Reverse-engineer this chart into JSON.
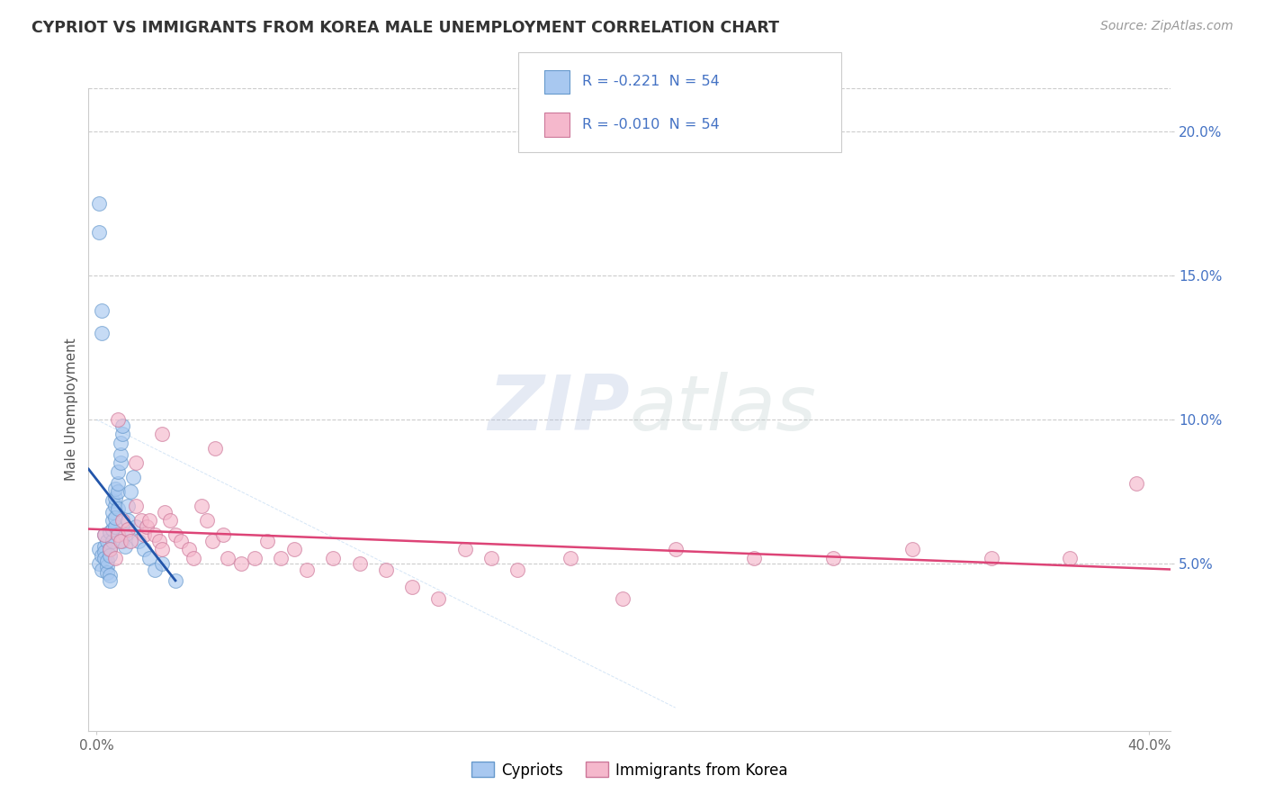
{
  "title": "CYPRIOT VS IMMIGRANTS FROM KOREA MALE UNEMPLOYMENT CORRELATION CHART",
  "source": "Source: ZipAtlas.com",
  "ylabel": "Male Unemployment",
  "color_blue_fill": "#A8C8F0",
  "color_blue_edge": "#6699CC",
  "color_blue_line": "#2255AA",
  "color_pink_fill": "#F5B8CC",
  "color_pink_edge": "#CC7799",
  "color_pink_line": "#DD4477",
  "r_cypriot": -0.221,
  "n_cypriot": 54,
  "r_korea": -0.01,
  "n_korea": 54,
  "legend_label1": "Cypriots",
  "legend_label2": "Immigrants from Korea",
  "xlim": [
    -0.003,
    0.408
  ],
  "ylim": [
    -0.008,
    0.215
  ],
  "background": "#FFFFFF",
  "grid_color": "#CCCCCC",
  "yticks": [
    0.05,
    0.1,
    0.15,
    0.2
  ],
  "ytick_labels": [
    "5.0%",
    "10.0%",
    "15.0%",
    "20.0%"
  ],
  "cypriot_x": [
    0.001,
    0.001,
    0.002,
    0.002,
    0.003,
    0.003,
    0.003,
    0.003,
    0.004,
    0.004,
    0.004,
    0.004,
    0.005,
    0.005,
    0.005,
    0.005,
    0.005,
    0.006,
    0.006,
    0.006,
    0.006,
    0.006,
    0.007,
    0.007,
    0.007,
    0.007,
    0.007,
    0.008,
    0.008,
    0.008,
    0.008,
    0.009,
    0.009,
    0.009,
    0.01,
    0.01,
    0.01,
    0.011,
    0.011,
    0.012,
    0.012,
    0.013,
    0.014,
    0.015,
    0.016,
    0.018,
    0.02,
    0.022,
    0.025,
    0.03,
    0.001,
    0.001,
    0.002,
    0.002
  ],
  "cypriot_y": [
    0.055,
    0.05,
    0.053,
    0.048,
    0.056,
    0.054,
    0.052,
    0.06,
    0.049,
    0.047,
    0.051,
    0.058,
    0.055,
    0.053,
    0.046,
    0.044,
    0.061,
    0.058,
    0.062,
    0.065,
    0.068,
    0.072,
    0.07,
    0.073,
    0.076,
    0.063,
    0.066,
    0.075,
    0.078,
    0.082,
    0.069,
    0.085,
    0.088,
    0.092,
    0.095,
    0.098,
    0.058,
    0.06,
    0.056,
    0.065,
    0.07,
    0.075,
    0.08,
    0.063,
    0.058,
    0.055,
    0.052,
    0.048,
    0.05,
    0.044,
    0.175,
    0.165,
    0.138,
    0.13
  ],
  "korea_x": [
    0.003,
    0.005,
    0.007,
    0.008,
    0.009,
    0.01,
    0.012,
    0.013,
    0.015,
    0.017,
    0.018,
    0.019,
    0.02,
    0.022,
    0.024,
    0.025,
    0.026,
    0.028,
    0.03,
    0.032,
    0.035,
    0.037,
    0.04,
    0.042,
    0.044,
    0.048,
    0.05,
    0.055,
    0.06,
    0.065,
    0.07,
    0.075,
    0.08,
    0.09,
    0.1,
    0.11,
    0.12,
    0.13,
    0.14,
    0.15,
    0.16,
    0.18,
    0.2,
    0.22,
    0.25,
    0.28,
    0.31,
    0.34,
    0.37,
    0.395,
    0.008,
    0.015,
    0.025,
    0.045
  ],
  "korea_y": [
    0.06,
    0.055,
    0.052,
    0.06,
    0.058,
    0.065,
    0.062,
    0.058,
    0.07,
    0.065,
    0.06,
    0.063,
    0.065,
    0.06,
    0.058,
    0.055,
    0.068,
    0.065,
    0.06,
    0.058,
    0.055,
    0.052,
    0.07,
    0.065,
    0.058,
    0.06,
    0.052,
    0.05,
    0.052,
    0.058,
    0.052,
    0.055,
    0.048,
    0.052,
    0.05,
    0.048,
    0.042,
    0.038,
    0.055,
    0.052,
    0.048,
    0.052,
    0.038,
    0.055,
    0.052,
    0.052,
    0.055,
    0.052,
    0.052,
    0.078,
    0.1,
    0.085,
    0.095,
    0.09
  ]
}
